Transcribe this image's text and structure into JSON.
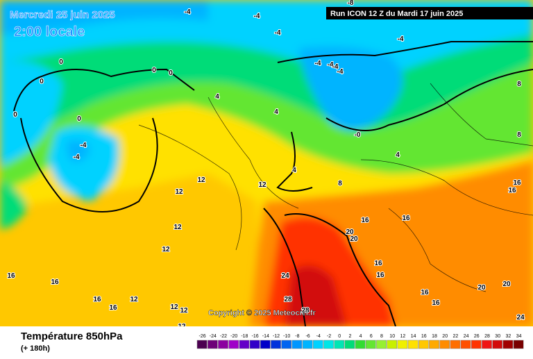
{
  "header": {
    "date": "Mercredi 25 juin 2025",
    "time": "2:00 locale",
    "run": "Run ICON 12 Z du Mardi 17 juin 2025",
    "copyright": "Copyright © 2025 Meteociel.fr"
  },
  "footer": {
    "title": "Température 850hPa",
    "subtitle": "(+ 180h)"
  },
  "legend": {
    "ticks": [
      -26,
      -24,
      -22,
      -20,
      -18,
      -16,
      -14,
      -12,
      -10,
      -8,
      -6,
      -4,
      -2,
      0,
      2,
      4,
      6,
      8,
      10,
      12,
      14,
      16,
      18,
      20,
      22,
      24,
      26,
      28,
      30,
      32,
      34
    ],
    "colors": [
      "#4b0050",
      "#6e0078",
      "#8c00a0",
      "#a000c8",
      "#6400c8",
      "#3200c8",
      "#0000c8",
      "#0032dc",
      "#0064f0",
      "#0096ff",
      "#00b4ff",
      "#00d2ff",
      "#00e6e6",
      "#00e6b4",
      "#00dc78",
      "#32dc32",
      "#64e632",
      "#96f032",
      "#c8f000",
      "#f0f000",
      "#ffe100",
      "#ffc800",
      "#ffaa00",
      "#ff8c00",
      "#ff6e00",
      "#ff5000",
      "#ff3200",
      "#f01414",
      "#d20a0a",
      "#a00000",
      "#780000"
    ]
  },
  "map": {
    "labels": [
      "-4",
      "-4",
      "-4",
      "0",
      "-8",
      "-4",
      "0",
      "0",
      "0",
      "0",
      "0",
      "-4",
      "-4",
      "-4",
      "-4",
      "-4",
      "-4",
      "4",
      "4",
      "4",
      "-0",
      "4",
      "8",
      "8",
      "8",
      "12",
      "12",
      "12",
      "16",
      "16",
      "16",
      "16",
      "16",
      "16",
      "12",
      "12",
      "20",
      "20",
      "24",
      "28",
      "28",
      "16",
      "16",
      "16",
      "16",
      "20",
      "20",
      "24",
      "12",
      "16",
      "16",
      "12",
      "12",
      "12"
    ]
  }
}
